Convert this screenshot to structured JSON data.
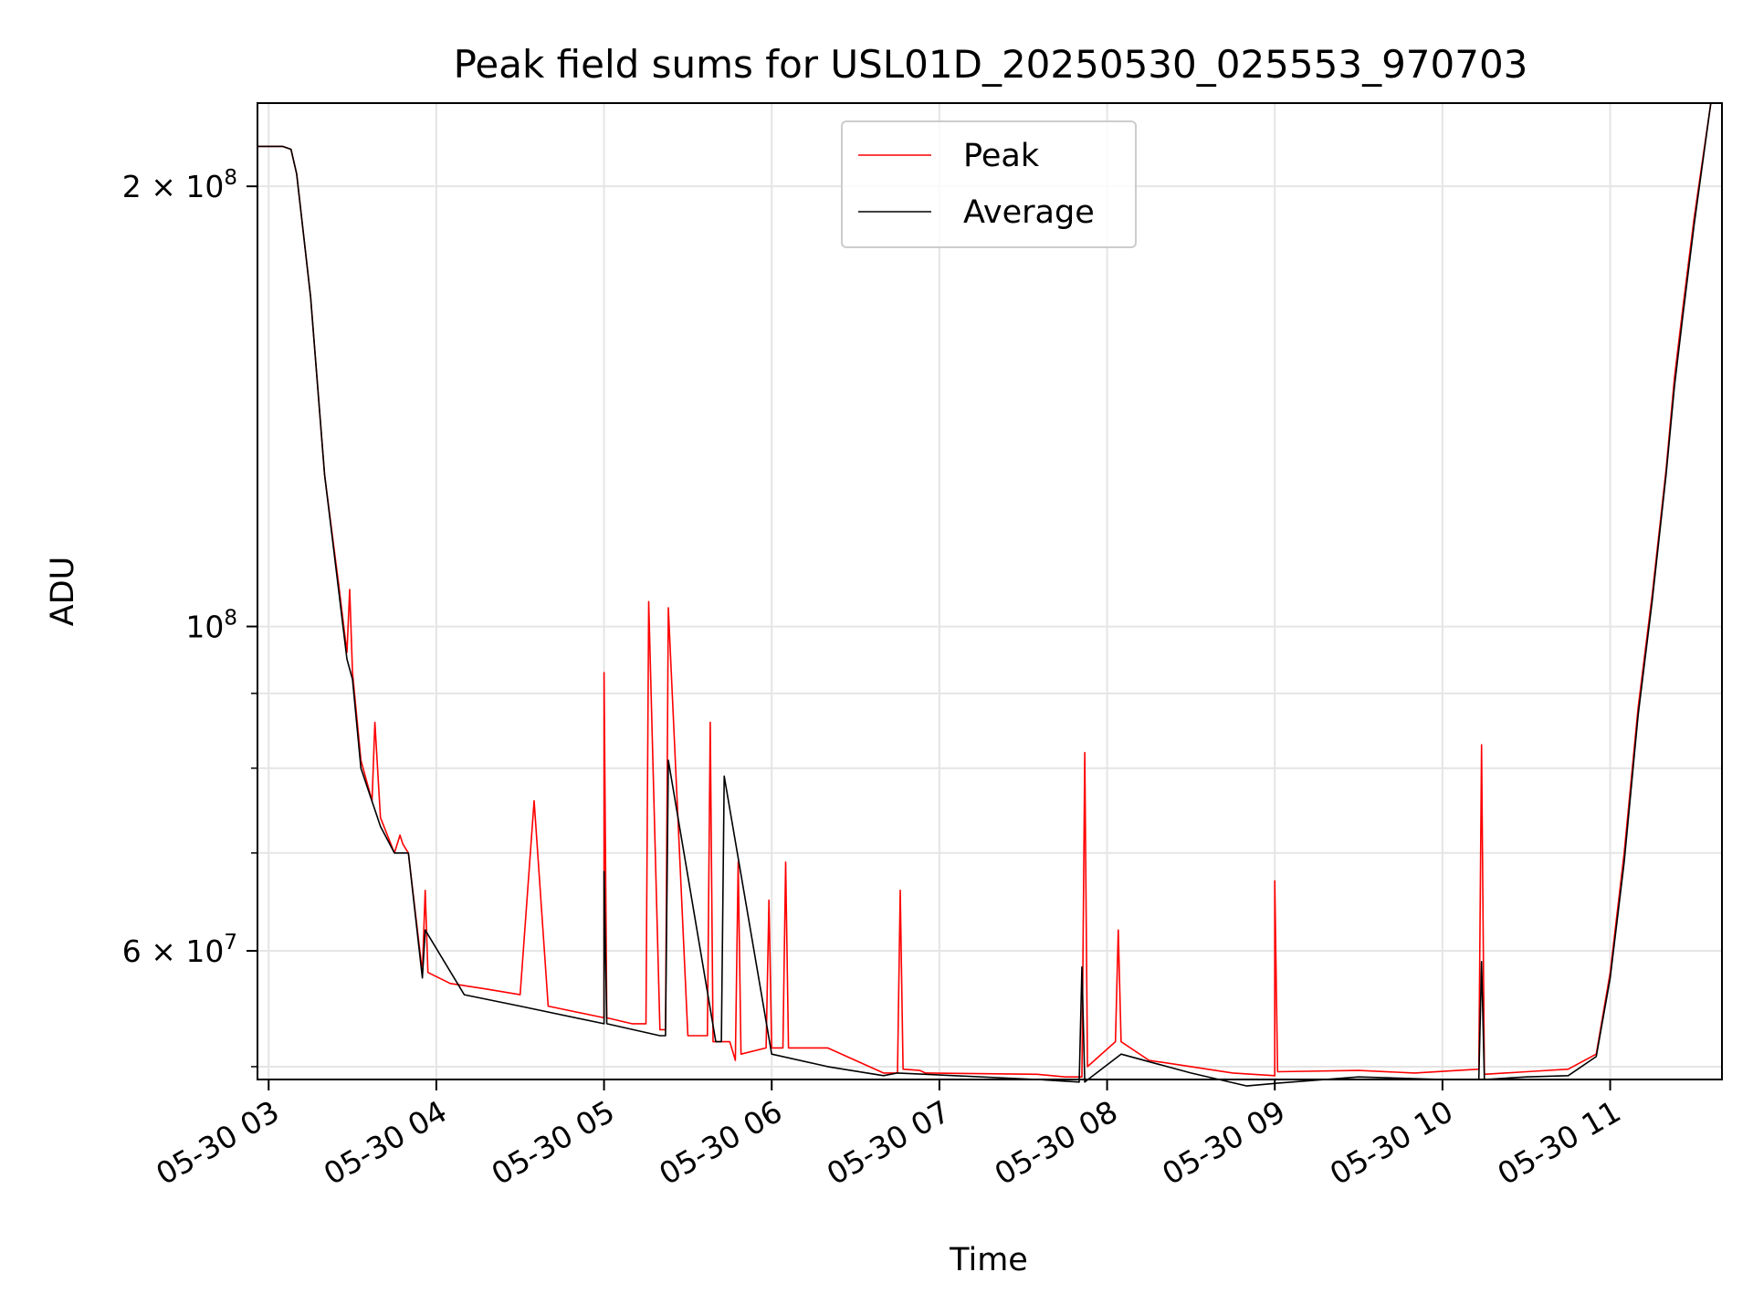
{
  "chart_data": {
    "type": "line",
    "title": "Peak field sums for USL01D_20250530_025553_970703",
    "xlabel": "Time",
    "ylabel": "ADU",
    "yscale": "log",
    "grid": true,
    "legend_placement": "upper center",
    "xlim": [
      "2025-05-30 02:56",
      "2025-05-30 11:40"
    ],
    "ylim": [
      49000000,
      228000000
    ],
    "x_ticks": [
      {
        "value": "2025-05-30 03:00",
        "label": "05-30 03"
      },
      {
        "value": "2025-05-30 04:00",
        "label": "05-30 04"
      },
      {
        "value": "2025-05-30 05:00",
        "label": "05-30 05"
      },
      {
        "value": "2025-05-30 06:00",
        "label": "05-30 06"
      },
      {
        "value": "2025-05-30 07:00",
        "label": "05-30 07"
      },
      {
        "value": "2025-05-30 08:00",
        "label": "05-30 08"
      },
      {
        "value": "2025-05-30 09:00",
        "label": "05-30 09"
      },
      {
        "value": "2025-05-30 10:00",
        "label": "05-30 10"
      },
      {
        "value": "2025-05-30 11:00",
        "label": "05-30 11"
      }
    ],
    "y_ticks": [
      {
        "value": 200000000,
        "mantissa": "2",
        "exp": "8"
      },
      {
        "value": 100000000,
        "mantissa": "",
        "exp": "8"
      },
      {
        "value": 60000000,
        "mantissa": "6",
        "exp": "7"
      }
    ],
    "y_minor_ticks": [
      50000000,
      70000000,
      80000000,
      90000000
    ],
    "series": [
      {
        "name": "Peak",
        "color": "#ff0000",
        "x": [
          "2025-05-30 02:56",
          "2025-05-30 03:05",
          "2025-05-30 03:08",
          "2025-05-30 03:10",
          "2025-05-30 03:15",
          "2025-05-30 03:20",
          "2025-05-30 03:25",
          "2025-05-30 03:28",
          "2025-05-30 03:29",
          "2025-05-30 03:30",
          "2025-05-30 03:33",
          "2025-05-30 03:37",
          "2025-05-30 03:38",
          "2025-05-30 03:40",
          "2025-05-30 03:45",
          "2025-05-30 03:47",
          "2025-05-30 03:48",
          "2025-05-30 03:50",
          "2025-05-30 03:55",
          "2025-05-30 03:56",
          "2025-05-30 03:57",
          "2025-05-30 04:05",
          "2025-05-30 04:18",
          "2025-05-30 04:30",
          "2025-05-30 04:35",
          "2025-05-30 04:40",
          "2025-05-30 05:00",
          "2025-05-30 05:00",
          "2025-05-30 05:01",
          "2025-05-30 05:10",
          "2025-05-30 05:15",
          "2025-05-30 05:16",
          "2025-05-30 05:20",
          "2025-05-30 05:22",
          "2025-05-30 05:23",
          "2025-05-30 05:30",
          "2025-05-30 05:37",
          "2025-05-30 05:38",
          "2025-05-30 05:39",
          "2025-05-30 05:45",
          "2025-05-30 05:47",
          "2025-05-30 05:48",
          "2025-05-30 05:49",
          "2025-05-30 05:58",
          "2025-05-30 05:59",
          "2025-05-30 06:00",
          "2025-05-30 06:04",
          "2025-05-30 06:05",
          "2025-05-30 06:06",
          "2025-05-30 06:20",
          "2025-05-30 06:40",
          "2025-05-30 06:45",
          "2025-05-30 06:46",
          "2025-05-30 06:47",
          "2025-05-30 06:53",
          "2025-05-30 06:54",
          "2025-05-30 06:55",
          "2025-05-30 07:35",
          "2025-05-30 07:45",
          "2025-05-30 07:51",
          "2025-05-30 07:52",
          "2025-05-30 07:53",
          "2025-05-30 08:03",
          "2025-05-30 08:04",
          "2025-05-30 08:05",
          "2025-05-30 08:15",
          "2025-05-30 08:30",
          "2025-05-30 08:45",
          "2025-05-30 09:00",
          "2025-05-30 09:00",
          "2025-05-30 09:01",
          "2025-05-30 09:30",
          "2025-05-30 09:50",
          "2025-05-30 10:13",
          "2025-05-30 10:14",
          "2025-05-30 10:15",
          "2025-05-30 10:30",
          "2025-05-30 10:45",
          "2025-05-30 10:55",
          "2025-05-30 11:00",
          "2025-05-30 11:05",
          "2025-05-30 11:10",
          "2025-05-30 11:15",
          "2025-05-30 11:20",
          "2025-05-30 11:23",
          "2025-05-30 11:26",
          "2025-05-30 11:30",
          "2025-05-30 11:36",
          "2025-05-30 11:40"
        ],
        "y": [
          213000000,
          213000000,
          212000000,
          204000000,
          168000000,
          127000000,
          107000000,
          96000000,
          106000000,
          93000000,
          81000000,
          76000000,
          86000000,
          74000000,
          70000000,
          72000000,
          71000000,
          70000000,
          58000000,
          66000000,
          58000000,
          57000000,
          56500000,
          56000000,
          76000000,
          55000000,
          54000000,
          93000000,
          54000000,
          53500000,
          53500000,
          104000000,
          53000000,
          53000000,
          103000000,
          52500000,
          52500000,
          86000000,
          52000000,
          52000000,
          50500000,
          69000000,
          51000000,
          51500000,
          65000000,
          51500000,
          51500000,
          69000000,
          51500000,
          51500000,
          49500000,
          49500000,
          66000000,
          49800000,
          49700000,
          49600000,
          49500000,
          49400000,
          49200000,
          49200000,
          82000000,
          50000000,
          52000000,
          62000000,
          52000000,
          50500000,
          50000000,
          49500000,
          49300000,
          67000000,
          49600000,
          49700000,
          49500000,
          49800000,
          83000000,
          49400000,
          49600000,
          49800000,
          51000000,
          58000000,
          70000000,
          88000000,
          105000000,
          128000000,
          148000000,
          165000000,
          190000000,
          228000000,
          228000000
        ]
      },
      {
        "name": "Average",
        "color": "#000000",
        "x": [
          "2025-05-30 02:56",
          "2025-05-30 03:05",
          "2025-05-30 03:08",
          "2025-05-30 03:10",
          "2025-05-30 03:15",
          "2025-05-30 03:20",
          "2025-05-30 03:25",
          "2025-05-30 03:28",
          "2025-05-30 03:30",
          "2025-05-30 03:33",
          "2025-05-30 03:40",
          "2025-05-30 03:45",
          "2025-05-30 03:50",
          "2025-05-30 03:55",
          "2025-05-30 03:56",
          "2025-05-30 04:10",
          "2025-05-30 04:30",
          "2025-05-30 05:00",
          "2025-05-30 05:00",
          "2025-05-30 05:01",
          "2025-05-30 05:20",
          "2025-05-30 05:22",
          "2025-05-30 05:23",
          "2025-05-30 05:40",
          "2025-05-30 05:42",
          "2025-05-30 05:43",
          "2025-05-30 06:00",
          "2025-05-30 06:20",
          "2025-05-30 06:40",
          "2025-05-30 06:45",
          "2025-05-30 06:55",
          "2025-05-30 07:35",
          "2025-05-30 07:50",
          "2025-05-30 07:51",
          "2025-05-30 07:52",
          "2025-05-30 08:05",
          "2025-05-30 08:30",
          "2025-05-30 08:50",
          "2025-05-30 09:00",
          "2025-05-30 09:30",
          "2025-05-30 10:00",
          "2025-05-30 10:13",
          "2025-05-30 10:14",
          "2025-05-30 10:15",
          "2025-05-30 10:30",
          "2025-05-30 10:45",
          "2025-05-30 10:55",
          "2025-05-30 11:00",
          "2025-05-30 11:05",
          "2025-05-30 11:10",
          "2025-05-30 11:15",
          "2025-05-30 11:20",
          "2025-05-30 11:23",
          "2025-05-30 11:26",
          "2025-05-30 11:30",
          "2025-05-30 11:36",
          "2025-05-30 11:40"
        ],
        "y": [
          213000000,
          213000000,
          212000000,
          204000000,
          168000000,
          127000000,
          106000000,
          95000000,
          92000000,
          80000000,
          73000000,
          70000000,
          70000000,
          57500000,
          62000000,
          56000000,
          55000000,
          53500000,
          68000000,
          53500000,
          52500000,
          52500000,
          81000000,
          52000000,
          52000000,
          79000000,
          51000000,
          50000000,
          49300000,
          49500000,
          49400000,
          49000000,
          48800000,
          58500000,
          48800000,
          51000000,
          49500000,
          48500000,
          48700000,
          49200000,
          49000000,
          49000000,
          59000000,
          49000000,
          49200000,
          49300000,
          50800000,
          57500000,
          69000000,
          87000000,
          104000000,
          127000000,
          146000000,
          163000000,
          188000000,
          228000000,
          228000000
        ]
      }
    ]
  }
}
